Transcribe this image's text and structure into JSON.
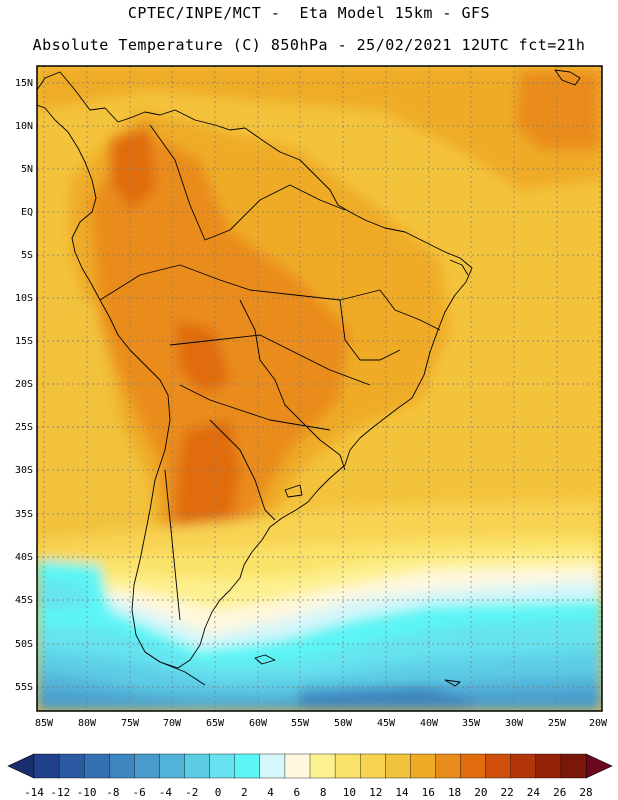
{
  "header": {
    "line1": "CPTEC/INPE/MCT -  Eta Model 15km - GFS",
    "line2": "Absolute Temperature (C) 850hPa - 25/02/2021 12UTC fct=21h"
  },
  "map": {
    "lat_labels": [
      "15N",
      "10N",
      "5N",
      "EQ",
      "5S",
      "10S",
      "15S",
      "20S",
      "25S",
      "30S",
      "35S",
      "40S",
      "45S",
      "50S",
      "55S"
    ],
    "lon_labels": [
      "85W",
      "80W",
      "75W",
      "70W",
      "65W",
      "60W",
      "55W",
      "50W",
      "45W",
      "40W",
      "35W",
      "30W",
      "25W",
      "20W"
    ]
  },
  "colorbar": {
    "labels": [
      "-14",
      "-12",
      "-10",
      "-8",
      "-6",
      "-4",
      "-2",
      "0",
      "2",
      "4",
      "6",
      "8",
      "10",
      "12",
      "14",
      "16",
      "18",
      "20",
      "22",
      "24",
      "26",
      "28"
    ],
    "colors": [
      "#21418c",
      "#2b5aa3",
      "#3471b2",
      "#3d86c0",
      "#4a9bcc",
      "#52b3d9",
      "#5dcde6",
      "#66e3ef",
      "#5cf5f5",
      "#d5f6fa",
      "#fff8de",
      "#fdf08f",
      "#fbe36a",
      "#f8d352",
      "#f2c23c",
      "#efab25",
      "#ea8c1b",
      "#e06c0d",
      "#ce4f0a",
      "#b3350a",
      "#942309",
      "#7a170b"
    ],
    "low_arrow_color": "#1a2e6e",
    "high_arrow_color": "#6b0a1e"
  }
}
